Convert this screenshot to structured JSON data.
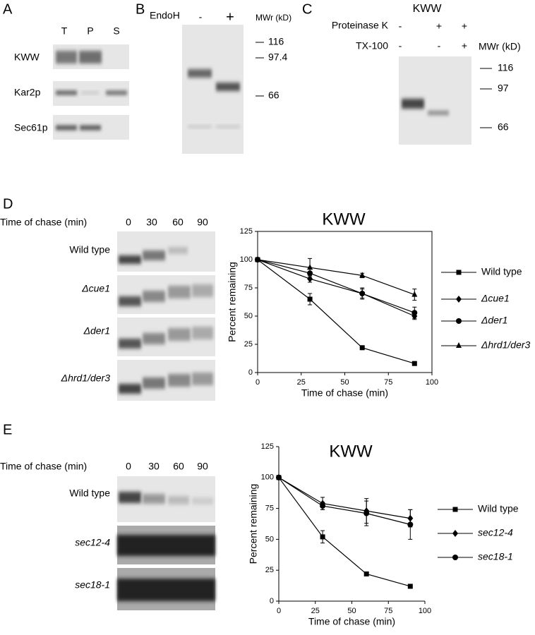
{
  "panels": {
    "A": {
      "label": "A",
      "lanes": [
        "T",
        "P",
        "S"
      ],
      "rows": [
        "KWW",
        "Kar2p",
        "Sec61p"
      ]
    },
    "B": {
      "label": "B",
      "treatment": "EndoH",
      "lanes": [
        "-",
        "+"
      ],
      "mw_label": "MWr (kD)",
      "markers": [
        116,
        97.4,
        66
      ]
    },
    "C": {
      "label": "C",
      "title": "KWW",
      "conditions": [
        {
          "name": "Proteinase K",
          "lanes": [
            "-",
            "+",
            "+"
          ]
        },
        {
          "name": "TX-100",
          "lanes": [
            "-",
            "-",
            "+"
          ]
        }
      ],
      "mw_label": "MWr (kD)",
      "markers": [
        116,
        97,
        66
      ]
    },
    "D": {
      "label": "D",
      "chase_label": "Time of chase (min)",
      "times": [
        0,
        30,
        60,
        90
      ],
      "rows": [
        "Wild type",
        "Δcue1",
        "Δder1",
        "Δhrd1/der3"
      ]
    },
    "E": {
      "label": "E",
      "chase_label": "Time of chase (min)",
      "times": [
        0,
        30,
        60,
        90
      ],
      "rows": [
        "Wild type",
        "sec12-4",
        "sec18-1"
      ]
    }
  },
  "chart_data": [
    {
      "type": "line",
      "title": "KWW",
      "x_label": "Time of chase (min)",
      "y_label": "Percent remaining",
      "frame": true,
      "x": [
        0,
        30,
        60,
        90
      ],
      "xlim": [
        0,
        100
      ],
      "xticks": [
        0,
        25,
        50,
        75,
        100
      ],
      "ylim": [
        0,
        125
      ],
      "yticks": [
        0,
        25,
        50,
        75,
        100,
        125
      ],
      "series": [
        {
          "name": "Wild type",
          "color": "#000000",
          "marker": "square",
          "values": [
            100,
            65,
            22,
            8
          ],
          "errors": [
            0,
            5,
            0,
            0
          ]
        },
        {
          "name": "Δcue1",
          "color": "#000000",
          "marker": "diamond",
          "values": [
            100,
            83,
            70,
            50
          ],
          "errors": [
            0,
            3,
            4,
            3
          ]
        },
        {
          "name": "Δder1",
          "color": "#000000",
          "marker": "circle",
          "values": [
            100,
            88,
            70,
            53
          ],
          "errors": [
            0,
            5,
            5,
            5
          ]
        },
        {
          "name": "Δhrd1/der3",
          "color": "#000000",
          "marker": "triangle",
          "values": [
            100,
            93,
            86,
            69
          ],
          "errors": [
            0,
            8,
            2,
            5
          ]
        }
      ]
    },
    {
      "type": "line",
      "title": "KWW",
      "x_label": "Time of chase (min)",
      "y_label": "Percent remaining",
      "frame": false,
      "x": [
        0,
        30,
        60,
        90
      ],
      "xlim": [
        0,
        100
      ],
      "xticks": [
        0,
        25,
        50,
        75,
        100
      ],
      "ylim": [
        0,
        125
      ],
      "yticks": [
        0,
        25,
        50,
        75,
        100,
        125
      ],
      "series": [
        {
          "name": "Wild type",
          "color": "#000000",
          "marker": "square",
          "values": [
            100,
            52,
            22,
            12
          ],
          "errors": [
            0,
            5,
            0,
            0
          ]
        },
        {
          "name": "sec12-4",
          "color": "#000000",
          "marker": "diamond",
          "values": [
            100,
            79,
            73,
            67
          ],
          "errors": [
            0,
            5,
            10,
            7
          ]
        },
        {
          "name": "sec18-1",
          "color": "#000000",
          "marker": "circle",
          "values": [
            100,
            77,
            71,
            62
          ],
          "errors": [
            0,
            3,
            10,
            12
          ]
        }
      ]
    }
  ]
}
